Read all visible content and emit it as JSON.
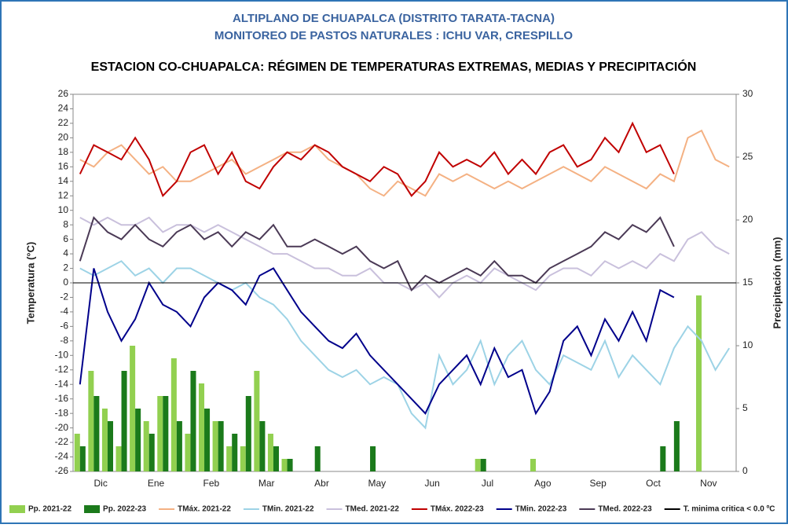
{
  "chart_data": {
    "type": "line",
    "title": "ALTIPLANO DE CHUAPALCA (DISTRITO TARATA-TACNA)",
    "subtitle": "MONITOREO DE PASTOS NATURALES : ICHU VAR, CRESPILLO",
    "heading": "ESTACION CO-CHUAPALCA: RÉGIMEN DE TEMPERATURAS EXTREMAS, MEDIAS Y PRECIPITACIÓN",
    "y_label": "Temperatura (°C)",
    "y2_label": "Precipitación (mm)",
    "categories": [
      "Dic",
      "Ene",
      "Feb",
      "Mar",
      "Abr",
      "May",
      "Jun",
      "Jul",
      "Ago",
      "Sep",
      "Oct",
      "Nov"
    ],
    "ylim": [
      -26,
      26
    ],
    "yticks": [
      -26,
      -24,
      -22,
      -20,
      -18,
      -16,
      -14,
      -12,
      -10,
      -8,
      -6,
      -4,
      -2,
      0,
      2,
      4,
      6,
      8,
      10,
      12,
      14,
      16,
      18,
      20,
      22,
      24,
      26
    ],
    "y2lim": [
      0,
      30
    ],
    "y2ticks": [
      0,
      5,
      10,
      15,
      20,
      25,
      30
    ],
    "series": [
      {
        "name": "Pp. 2021-22",
        "type": "bar",
        "axis": "y2",
        "color": "#92d050",
        "values": [
          [
            3,
            8,
            5,
            2
          ],
          [
            10,
            4,
            6,
            9
          ],
          [
            3,
            7,
            4,
            2
          ],
          [
            2,
            8,
            3,
            1
          ],
          [
            0,
            0,
            0,
            0
          ],
          [
            0,
            0,
            0,
            0
          ],
          [
            0,
            0,
            0,
            0
          ],
          [
            0,
            1,
            0,
            0
          ],
          [
            0,
            1,
            0,
            0
          ],
          [
            0,
            0,
            0,
            0
          ],
          [
            0,
            0,
            0,
            0
          ],
          [
            0,
            14,
            0,
            0
          ]
        ]
      },
      {
        "name": "Pp. 2022-23",
        "type": "bar",
        "axis": "y2",
        "color": "#1b7a1b",
        "values": [
          [
            2,
            6,
            4,
            8
          ],
          [
            5,
            3,
            6,
            4
          ],
          [
            8,
            5,
            4,
            3
          ],
          [
            6,
            4,
            2,
            1
          ],
          [
            0,
            2,
            0,
            0
          ],
          [
            0,
            2,
            0,
            0
          ],
          [
            0,
            0,
            0,
            0
          ],
          [
            0,
            1,
            0,
            0
          ],
          [
            0,
            0,
            0,
            0
          ],
          [
            0,
            0,
            0,
            0
          ],
          [
            0,
            0,
            2,
            4
          ],
          [
            null,
            null,
            null,
            null
          ]
        ]
      },
      {
        "name": "TMáx. 2021-22",
        "color": "#f4b183",
        "values": [
          [
            17,
            16,
            18,
            19
          ],
          [
            17,
            15,
            16,
            14
          ],
          [
            14,
            15,
            16,
            17
          ],
          [
            15,
            16,
            17,
            18
          ],
          [
            18,
            19,
            17,
            16
          ],
          [
            15,
            13,
            12,
            14
          ],
          [
            13,
            12,
            15,
            14
          ],
          [
            15,
            14,
            13,
            14
          ],
          [
            13,
            14,
            15,
            16
          ],
          [
            15,
            14,
            16,
            15
          ],
          [
            14,
            13,
            15,
            14
          ],
          [
            20,
            21,
            17,
            16
          ]
        ]
      },
      {
        "name": "TMin. 2021-22",
        "color": "#9dd3e6",
        "values": [
          [
            2,
            1,
            2,
            3
          ],
          [
            1,
            2,
            0,
            2
          ],
          [
            2,
            1,
            0,
            -1
          ],
          [
            0,
            -2,
            -3,
            -5
          ],
          [
            -8,
            -10,
            -12,
            -13
          ],
          [
            -12,
            -14,
            -13,
            -14
          ],
          [
            -18,
            -20,
            -10,
            -14
          ],
          [
            -12,
            -8,
            -14,
            -10
          ],
          [
            -8,
            -12,
            -14,
            -10
          ],
          [
            -11,
            -12,
            -8,
            -13
          ],
          [
            -10,
            -12,
            -14,
            -9
          ],
          [
            -6,
            -8,
            -12,
            -9
          ]
        ]
      },
      {
        "name": "TMed. 2021-22",
        "color": "#c9c0dc",
        "values": [
          [
            9,
            8,
            9,
            8
          ],
          [
            8,
            9,
            7,
            8
          ],
          [
            8,
            7,
            8,
            7
          ],
          [
            6,
            5,
            4,
            4
          ],
          [
            3,
            2,
            2,
            1
          ],
          [
            1,
            2,
            0,
            0
          ],
          [
            -1,
            0,
            -2,
            0
          ],
          [
            1,
            0,
            2,
            1
          ],
          [
            0,
            -1,
            1,
            2
          ],
          [
            2,
            1,
            3,
            2
          ],
          [
            3,
            2,
            4,
            3
          ],
          [
            6,
            7,
            5,
            4
          ]
        ]
      },
      {
        "name": "TMáx. 2022-23",
        "color": "#c00000",
        "values": [
          [
            15,
            19,
            18,
            17
          ],
          [
            20,
            17,
            12,
            14
          ],
          [
            18,
            19,
            15,
            18
          ],
          [
            14,
            13,
            16,
            18
          ],
          [
            17,
            19,
            18,
            16
          ],
          [
            15,
            14,
            16,
            15
          ],
          [
            12,
            14,
            18,
            16
          ],
          [
            17,
            16,
            18,
            15
          ],
          [
            17,
            15,
            18,
            19
          ],
          [
            16,
            17,
            20,
            18
          ],
          [
            22,
            18,
            19,
            15
          ],
          [
            null,
            null,
            null,
            null
          ]
        ]
      },
      {
        "name": "TMin. 2022-23",
        "color": "#00008b",
        "values": [
          [
            -14,
            2,
            -4,
            -8
          ],
          [
            -5,
            0,
            -3,
            -4
          ],
          [
            -6,
            -2,
            0,
            -1
          ],
          [
            -3,
            1,
            2,
            -1
          ],
          [
            -4,
            -6,
            -8,
            -9
          ],
          [
            -7,
            -10,
            -12,
            -14
          ],
          [
            -16,
            -18,
            -14,
            -12
          ],
          [
            -10,
            -14,
            -9,
            -13
          ],
          [
            -12,
            -18,
            -15,
            -8
          ],
          [
            -6,
            -10,
            -5,
            -8
          ],
          [
            -4,
            -8,
            -1,
            -2
          ],
          [
            null,
            null,
            null,
            null
          ]
        ]
      },
      {
        "name": "TMed. 2022-23",
        "color": "#4b3a56",
        "values": [
          [
            3,
            9,
            7,
            6
          ],
          [
            8,
            6,
            5,
            7
          ],
          [
            8,
            6,
            7,
            5
          ],
          [
            7,
            6,
            8,
            5
          ],
          [
            5,
            6,
            5,
            4
          ],
          [
            5,
            3,
            2,
            3
          ],
          [
            -1,
            1,
            0,
            1
          ],
          [
            2,
            1,
            3,
            1
          ],
          [
            1,
            0,
            2,
            3
          ],
          [
            4,
            5,
            7,
            6
          ],
          [
            8,
            7,
            9,
            5
          ],
          [
            null,
            null,
            null,
            null
          ]
        ]
      }
    ],
    "threshold": {
      "name": "T. minima critica < 0.0 ºC",
      "value": 0,
      "color": "#000000"
    }
  }
}
